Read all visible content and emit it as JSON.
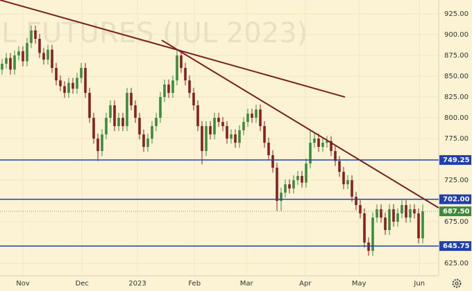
{
  "chart_data": {
    "type": "candlestick",
    "watermark": "L FUTURES (JUL 2023)",
    "up_color": "#3d8b3d",
    "down_color": "#8b1e1e",
    "candles": {
      "open": [
        858,
        865,
        872,
        858,
        875,
        880,
        868,
        890,
        905,
        895,
        878,
        870,
        882,
        860,
        845,
        838,
        830,
        842,
        835,
        848,
        860,
        830,
        800,
        775,
        760,
        780,
        800,
        815,
        790,
        800,
        790,
        830,
        815,
        800,
        780,
        765,
        775,
        790,
        800,
        825,
        840,
        830,
        845,
        875,
        860,
        845,
        830,
        815,
        790,
        760,
        790,
        780,
        800,
        795,
        790,
        775,
        780,
        770,
        785,
        795,
        805,
        800,
        810,
        790,
        770,
        755,
        740,
        700,
        710,
        720,
        715,
        725,
        730,
        722,
        745,
        770,
        775,
        765,
        770,
        772,
        760,
        748,
        735,
        720,
        725,
        705,
        695,
        685,
        650,
        640,
        680,
        690,
        680,
        665,
        690,
        675,
        685,
        695,
        680,
        690,
        685,
        655
      ],
      "high": [
        871,
        878,
        878,
        881,
        886,
        886,
        896,
        911,
        911,
        901,
        884,
        888,
        888,
        866,
        851,
        844,
        848,
        848,
        854,
        866,
        866,
        836,
        806,
        781,
        786,
        806,
        821,
        821,
        806,
        806,
        836,
        836,
        821,
        806,
        786,
        781,
        796,
        806,
        831,
        846,
        846,
        851,
        881,
        881,
        866,
        851,
        836,
        821,
        796,
        796,
        796,
        806,
        806,
        801,
        796,
        786,
        786,
        791,
        801,
        811,
        811,
        816,
        816,
        796,
        776,
        761,
        746,
        716,
        726,
        726,
        731,
        736,
        736,
        751,
        786,
        781,
        781,
        776,
        778,
        778,
        766,
        754,
        741,
        731,
        731,
        711,
        701,
        691,
        656,
        686,
        696,
        696,
        686,
        696,
        696,
        691,
        701,
        701,
        696,
        696,
        691,
        696
      ],
      "low": [
        852,
        859,
        852,
        852,
        869,
        862,
        862,
        884,
        889,
        872,
        864,
        864,
        854,
        839,
        832,
        824,
        824,
        829,
        829,
        842,
        824,
        794,
        769,
        748,
        754,
        774,
        794,
        784,
        784,
        784,
        784,
        809,
        794,
        774,
        759,
        759,
        769,
        784,
        794,
        819,
        824,
        824,
        839,
        854,
        839,
        824,
        809,
        784,
        744,
        754,
        774,
        774,
        789,
        784,
        769,
        769,
        764,
        764,
        779,
        789,
        794,
        794,
        784,
        764,
        749,
        734,
        688,
        688,
        704,
        709,
        709,
        719,
        716,
        716,
        739,
        764,
        759,
        759,
        764,
        754,
        742,
        729,
        714,
        714,
        699,
        689,
        679,
        644,
        634,
        634,
        674,
        674,
        659,
        659,
        669,
        669,
        679,
        674,
        674,
        679,
        649,
        649
      ],
      "close": [
        865,
        872,
        858,
        875,
        880,
        868,
        890,
        905,
        895,
        878,
        870,
        882,
        860,
        845,
        838,
        830,
        842,
        835,
        848,
        860,
        830,
        800,
        775,
        760,
        780,
        800,
        815,
        790,
        800,
        790,
        830,
        815,
        800,
        780,
        765,
        775,
        790,
        800,
        825,
        840,
        830,
        845,
        875,
        860,
        845,
        830,
        815,
        790,
        760,
        790,
        780,
        800,
        795,
        790,
        775,
        780,
        770,
        785,
        795,
        805,
        800,
        810,
        790,
        770,
        755,
        740,
        700,
        710,
        720,
        715,
        725,
        730,
        722,
        745,
        770,
        775,
        765,
        770,
        772,
        760,
        748,
        735,
        720,
        725,
        705,
        695,
        685,
        650,
        640,
        680,
        690,
        680,
        665,
        690,
        675,
        685,
        695,
        680,
        690,
        685,
        655,
        687.5
      ]
    },
    "xlim": [
      -0.5,
      104.83
    ],
    "xticks": [
      {
        "value": 5,
        "label": "Nov"
      },
      {
        "value": 19.2,
        "label": "Dec"
      },
      {
        "value": 32.5,
        "label": "2023"
      },
      {
        "value": 46.2,
        "label": "Feb"
      },
      {
        "value": 58.7,
        "label": "Mar"
      },
      {
        "value": 72.8,
        "label": "Apr"
      },
      {
        "value": 85.7,
        "label": "May"
      },
      {
        "value": 100.2,
        "label": "Jun"
      }
    ],
    "ylim": [
      610,
      941.7
    ],
    "yticks": [
      {
        "value": 625,
        "label": "625.00"
      },
      {
        "value": 675,
        "label": "675.00"
      },
      {
        "value": 725,
        "label": "725.00"
      },
      {
        "value": 775,
        "label": "775.00"
      },
      {
        "value": 800,
        "label": "800.00"
      },
      {
        "value": 825,
        "label": "825.00"
      },
      {
        "value": 850,
        "label": "850.00"
      },
      {
        "value": 875,
        "label": "875.00"
      },
      {
        "value": 900,
        "label": "900.00"
      },
      {
        "value": 925,
        "label": "925.00"
      }
    ],
    "grid": true,
    "levels": [
      {
        "value": 749.25,
        "label": "749.25"
      },
      {
        "value": 702,
        "label": "702.00"
      },
      {
        "value": 645.75,
        "label": "645.75"
      }
    ],
    "level_color": "#1f3fae",
    "last_price": {
      "value": 687.5,
      "label": "687.50"
    },
    "trendlines": [
      {
        "x": [
          -0.5,
          82.33
        ],
        "y": [
          941.7,
          825
        ]
      },
      {
        "x": [
          38.33,
          104.83
        ],
        "y": [
          893.3,
          691.7
        ]
      }
    ],
    "trendline_color": "#7a1f1f"
  }
}
